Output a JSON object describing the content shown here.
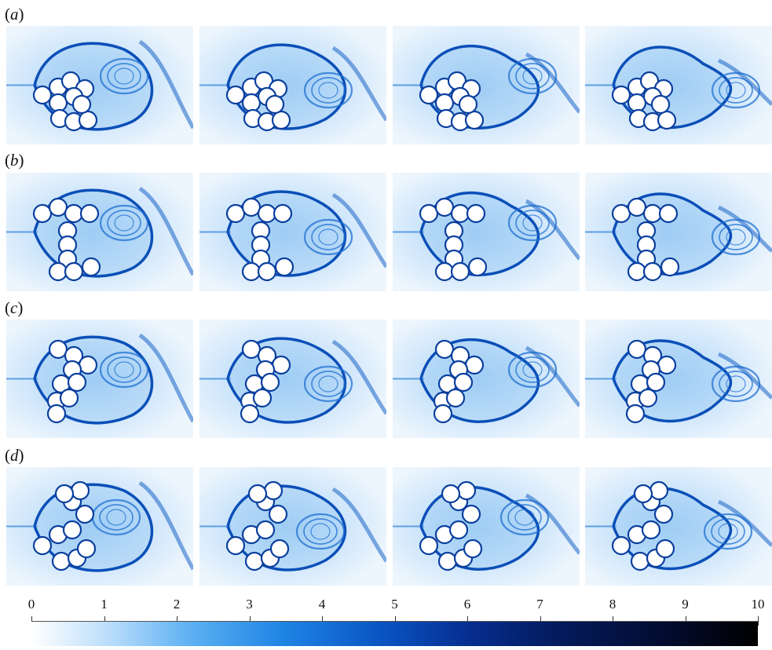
{
  "rows": [
    {
      "label": "a"
    },
    {
      "label": "b"
    },
    {
      "label": "c"
    },
    {
      "label": "d"
    }
  ],
  "colorbar": {
    "min": 0,
    "max": 10,
    "ticks": [
      "0",
      "1",
      "2",
      "3",
      "4",
      "5",
      "6",
      "7",
      "8",
      "9",
      "10"
    ],
    "colors": [
      "#ffffff",
      "#bfe0fb",
      "#5cb0f2",
      "#1d83e3",
      "#0a55c3",
      "#062e91",
      "#041b5e",
      "#030d33",
      "#000000"
    ]
  }
}
